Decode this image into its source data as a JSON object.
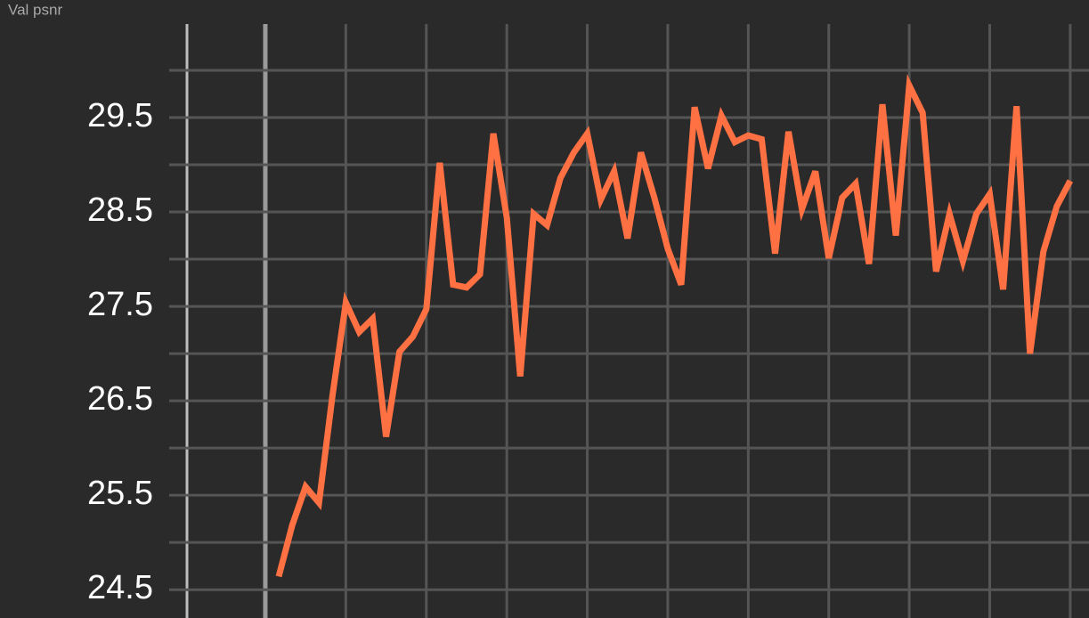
{
  "chart_data": {
    "type": "line",
    "title": "Val psnr",
    "x": [
      1,
      2,
      3,
      4,
      5,
      6,
      7,
      8,
      9,
      10,
      11,
      12,
      13,
      14,
      15,
      16,
      17,
      18,
      19,
      20,
      21,
      22,
      23,
      24,
      25,
      26,
      27,
      28,
      29,
      30,
      31,
      32,
      33,
      34,
      35,
      36,
      37,
      38,
      39,
      40,
      41,
      42,
      43,
      44,
      45,
      46,
      47,
      48,
      49,
      50,
      51,
      52,
      53,
      54,
      55,
      56,
      57,
      58,
      59,
      60
    ],
    "series": [
      {
        "name": "psnr",
        "color": "#ff7043",
        "values": [
          24.64,
          25.18,
          25.59,
          25.42,
          26.55,
          27.54,
          27.23,
          27.37,
          26.12,
          27.02,
          27.18,
          27.47,
          29.02,
          27.73,
          27.7,
          27.84,
          29.33,
          28.44,
          26.76,
          28.48,
          28.36,
          28.86,
          29.13,
          29.33,
          28.63,
          28.93,
          28.22,
          29.13,
          28.65,
          28.11,
          27.73,
          29.61,
          28.96,
          29.52,
          29.24,
          29.31,
          29.27,
          28.06,
          29.35,
          28.53,
          28.93,
          28.01,
          28.65,
          28.8,
          27.95,
          29.64,
          28.25,
          29.84,
          29.55,
          27.87,
          28.48,
          27.98,
          28.48,
          28.69,
          27.68,
          29.62,
          27.0,
          28.08,
          28.56,
          28.83
        ]
      }
    ],
    "xlim": [
      -5.84,
      61.4
    ],
    "xticks_minor": [
      0,
      6,
      12,
      18,
      24,
      30,
      36,
      42,
      48,
      54,
      60
    ],
    "ylim": [
      24.2,
      30.49
    ],
    "yticks": [
      24.5,
      25.5,
      26.5,
      27.5,
      28.5,
      29.5
    ],
    "yticks_minor": [
      25,
      26,
      27,
      28,
      29,
      30
    ],
    "grid": true
  }
}
